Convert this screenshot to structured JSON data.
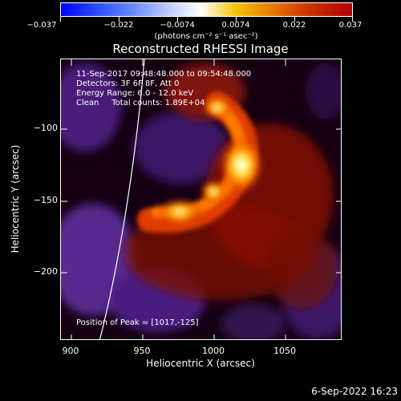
{
  "colorbar": {
    "ticks": [
      "−0.037",
      "−0.022",
      "−0.0074",
      "0.0074",
      "0.022",
      "0.037"
    ],
    "units": "(photons cm⁻² s⁻¹ asec⁻²)",
    "min": -0.037,
    "max": 0.037
  },
  "title": "Reconstructed RHESSI Image",
  "info": {
    "line1": "11-Sep-2017 09:48:48.000 to 09:54:48.000",
    "line2": "Detectors: 3F 6F 8F, Att 0",
    "line3": "Energy Range: 6.0 - 12.0 keV",
    "line4": "Clean     Total counts: 1.89E+04"
  },
  "peak_text": "Position of Peak = [1017,-125]",
  "axes": {
    "xlabel": "Heliocentric X (arcsec)",
    "ylabel": "Heliocentric Y (arcsec)",
    "xticks": [
      "900",
      "950",
      "1000",
      "1050"
    ],
    "yticks": [
      "−100",
      "−150",
      "−200"
    ],
    "xlim": [
      893,
      1087
    ],
    "ylim": [
      -245,
      -52
    ]
  },
  "peak": {
    "x": 1017,
    "y": -125
  },
  "timestamp": "6-Sep-2022 16:23",
  "colors": {
    "negative": "#5a2590",
    "background": "#000000",
    "peak": "#ffffff",
    "limb": "#ffffff"
  }
}
